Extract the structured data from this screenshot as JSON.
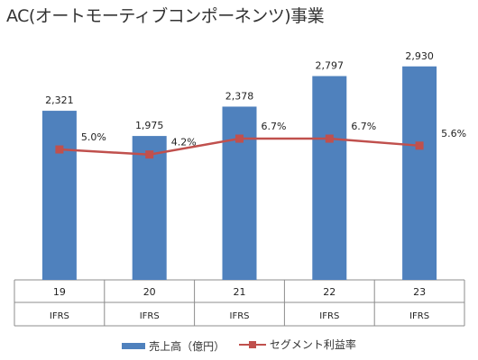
{
  "chart_data": {
    "type": "bar+line",
    "title": "AC(オートモーティブコンポーネンツ)事業",
    "categories": [
      "19",
      "20",
      "21",
      "22",
      "23"
    ],
    "subcategories": [
      "IFRS",
      "IFRS",
      "IFRS",
      "IFRS",
      "IFRS"
    ],
    "series": [
      {
        "name": "売上高（億円）",
        "type": "bar",
        "color": "#4f81bd",
        "values": [
          2321,
          1975,
          2378,
          2797,
          2930
        ],
        "labels": [
          "2,321",
          "1,975",
          "2,378",
          "2,797",
          "2,930"
        ],
        "ylim": [
          0,
          3100
        ]
      },
      {
        "name": "セグメント利益率",
        "type": "line",
        "color": "#c0504d",
        "values": [
          5.0,
          4.2,
          6.7,
          6.7,
          5.6
        ],
        "labels": [
          "5.0%",
          "4.2%",
          "6.7%",
          "6.7%",
          "5.6%"
        ],
        "ylim": [
          -15.5,
          20
        ]
      }
    ],
    "grid": false,
    "legend_position": "bottom"
  }
}
